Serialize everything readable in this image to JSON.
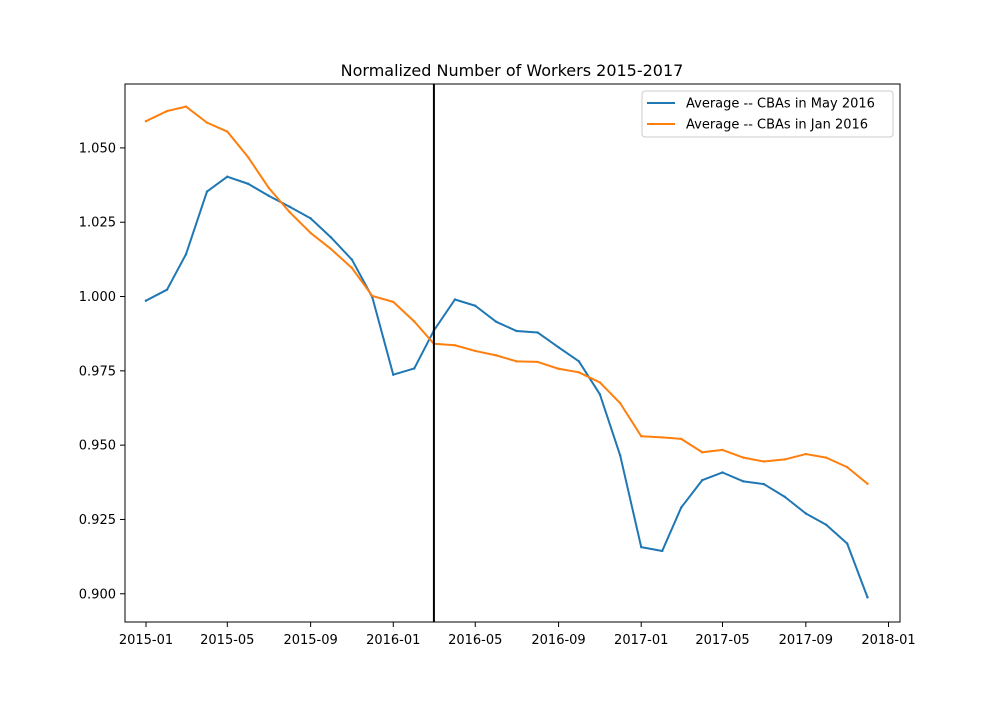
{
  "chart_data": {
    "type": "line",
    "title": "Normalized Number of Workers 2015-2017",
    "xlabel": "",
    "ylabel": "",
    "x_axis_type": "date",
    "x_range": [
      "2014-12-01",
      "2018-01-18"
    ],
    "y_range": [
      0.8905,
      1.0715
    ],
    "x_ticks": [
      "2015-01",
      "2015-05",
      "2015-09",
      "2016-01",
      "2016-05",
      "2016-09",
      "2017-01",
      "2017-05",
      "2017-09",
      "2018-01"
    ],
    "y_ticks": [
      "0.900",
      "0.925",
      "0.950",
      "0.975",
      "1.000",
      "1.025",
      "1.050"
    ],
    "grid": false,
    "legend_position": "top-right",
    "vertical_line": {
      "x": "2016-03-01",
      "color": "#000000"
    },
    "dates": [
      "2015-01-01",
      "2015-02-01",
      "2015-03-01",
      "2015-04-01",
      "2015-05-01",
      "2015-06-01",
      "2015-07-01",
      "2015-08-01",
      "2015-09-01",
      "2015-10-01",
      "2015-11-01",
      "2015-12-01",
      "2016-01-01",
      "2016-02-01",
      "2016-03-01",
      "2016-04-01",
      "2016-05-01",
      "2016-06-01",
      "2016-07-01",
      "2016-08-01",
      "2016-09-01",
      "2016-10-01",
      "2016-11-01",
      "2016-12-01",
      "2017-01-01",
      "2017-02-01",
      "2017-03-01",
      "2017-04-01",
      "2017-05-01",
      "2017-06-01",
      "2017-07-01",
      "2017-08-01",
      "2017-09-01",
      "2017-10-01",
      "2017-11-01",
      "2017-12-01"
    ],
    "series": [
      {
        "name": "Average -- CBAs in May 2016",
        "color": "#1f77b4",
        "values": [
          0.9986,
          1.0023,
          1.0142,
          1.0353,
          1.0403,
          1.0379,
          1.0339,
          1.0302,
          1.0263,
          1.0199,
          1.0124,
          0.9998,
          0.9737,
          0.9758,
          0.9886,
          0.999,
          0.9969,
          0.9915,
          0.9884,
          0.9879,
          0.9829,
          0.9782,
          0.9671,
          0.9465,
          0.9157,
          0.9144,
          0.929,
          0.9382,
          0.9408,
          0.9378,
          0.9369,
          0.9326,
          0.927,
          0.9232,
          0.9169,
          0.8988
        ]
      },
      {
        "name": "Average -- CBAs in Jan 2016",
        "color": "#ff7f0e",
        "values": [
          1.059,
          1.0624,
          1.0639,
          1.0585,
          1.0555,
          1.0468,
          1.0366,
          1.0284,
          1.0214,
          1.016,
          1.0096,
          1.0002,
          0.9982,
          0.9916,
          0.9841,
          0.9836,
          0.9817,
          0.9802,
          0.9782,
          0.978,
          0.9757,
          0.9745,
          0.9711,
          0.9641,
          0.953,
          0.9526,
          0.9521,
          0.9476,
          0.9484,
          0.9458,
          0.9445,
          0.9452,
          0.947,
          0.9458,
          0.9426,
          0.937
        ]
      }
    ]
  }
}
